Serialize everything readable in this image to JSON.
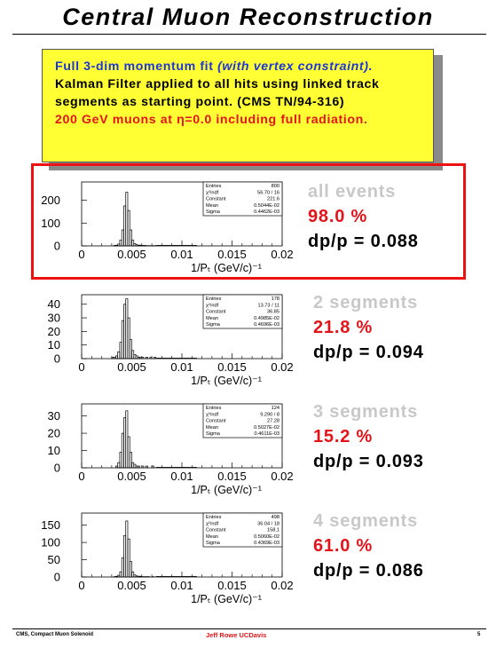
{
  "title": "Central Muon Reconstruction",
  "note": {
    "line1_main": "Full 3-dim momentum fit",
    "line1_italic": "(with vertex constraint).",
    "line2": "Kalman Filter applied to all hits using linked track",
    "line3": "segments as starting point.  (CMS TN/94-316)",
    "line4": "200 GeV muons at η=0.0 including full radiation."
  },
  "colors": {
    "title_blue": "#1d36d6",
    "accent_red": "#e2141a",
    "box_yellow": "#ffff33",
    "segment_grey": "#c8c8c8"
  },
  "panels": [
    {
      "segment_label": "all events",
      "efficiency": "98.0 %",
      "resolution": "dp/p = 0.088",
      "stats": [
        [
          "Entries",
          "800"
        ],
        [
          "χ²/ndf",
          "56.70  /  16"
        ],
        [
          "Constant",
          "221.6"
        ],
        [
          "Mean",
          "0.5044E-02"
        ],
        [
          "Sigma",
          "0.4462E-03"
        ]
      ]
    },
    {
      "segment_label": "2 segments",
      "efficiency": "21.8 %",
      "resolution": "dp/p = 0.094",
      "stats": [
        [
          "Entries",
          "178"
        ],
        [
          "χ²/ndf",
          "13.73  /  11"
        ],
        [
          "Constant",
          "36.85"
        ],
        [
          "Mean",
          "0.4985E-02"
        ],
        [
          "Sigma",
          "0.4696E-03"
        ]
      ]
    },
    {
      "segment_label": "3 segments",
      "efficiency": "15.2 %",
      "resolution": "dp/p = 0.093",
      "stats": [
        [
          "Entries",
          "124"
        ],
        [
          "χ²/ndf",
          "9.290  /  8"
        ],
        [
          "Constant",
          "27.28"
        ],
        [
          "Mean",
          "0.5027E-02"
        ],
        [
          "Sigma",
          "0.4611E-03"
        ]
      ]
    },
    {
      "segment_label": "4 segments",
      "efficiency": "61.0 %",
      "resolution": "dp/p = 0.086",
      "stats": [
        [
          "Entries",
          "498"
        ],
        [
          "χ²/ndf",
          "36.04  /  18"
        ],
        [
          "Constant",
          "158.1"
        ],
        [
          "Mean",
          "0.5060E-02"
        ],
        [
          "Sigma",
          "0.4369E-03"
        ]
      ]
    }
  ],
  "chart_data": [
    {
      "type": "bar",
      "xlabel": "1/Pₜ (GeV/c)⁻¹",
      "xlim": [
        0,
        0.02
      ],
      "ylim": [
        0,
        280
      ],
      "xticks": [
        "0",
        "0.005",
        "0.01",
        "0.015",
        "0.02"
      ],
      "yticks": [
        0,
        100,
        200
      ],
      "bin_start": 0.003,
      "bin_width": 0.0002,
      "values": [
        0,
        2,
        3,
        8,
        25,
        70,
        175,
        235,
        155,
        70,
        25,
        10,
        5,
        3,
        3,
        2,
        2,
        1,
        1,
        1,
        1,
        1
      ]
    },
    {
      "type": "bar",
      "xlabel": "1/Pₜ (GeV/c)⁻¹",
      "xlim": [
        0,
        0.02
      ],
      "ylim": [
        0,
        47
      ],
      "xticks": [
        "0",
        "0.005",
        "0.01",
        "0.015",
        "0.02"
      ],
      "yticks": [
        0,
        10,
        20,
        30,
        40
      ],
      "bin_start": 0.003,
      "bin_width": 0.0002,
      "values": [
        1,
        1,
        2,
        5,
        12,
        28,
        40,
        44,
        30,
        14,
        6,
        3,
        2,
        1,
        1,
        1,
        0,
        1,
        0,
        1,
        0,
        1
      ]
    },
    {
      "type": "bar",
      "xlabel": "1/Pₜ (GeV/c)⁻¹",
      "xlim": [
        0,
        0.02
      ],
      "ylim": [
        0,
        37
      ],
      "xticks": [
        "0",
        "0.005",
        "0.01",
        "0.015",
        "0.02"
      ],
      "yticks": [
        0,
        10,
        20,
        30
      ],
      "bin_start": 0.003,
      "bin_width": 0.0002,
      "values": [
        0,
        0,
        1,
        3,
        9,
        20,
        29,
        33,
        18,
        9,
        3,
        2,
        1,
        1,
        0,
        1,
        0,
        1,
        0,
        0,
        1,
        0
      ]
    },
    {
      "type": "bar",
      "xlabel": "1/Pₜ (GeV/c)⁻¹",
      "xlim": [
        0,
        0.02
      ],
      "ylim": [
        0,
        185
      ],
      "xticks": [
        "0",
        "0.005",
        "0.01",
        "0.015",
        "0.02"
      ],
      "yticks": [
        0,
        50,
        100,
        150
      ],
      "bin_start": 0.003,
      "bin_width": 0.0002,
      "values": [
        0,
        1,
        2,
        5,
        15,
        55,
        120,
        162,
        110,
        45,
        15,
        6,
        3,
        2,
        2,
        1,
        1,
        1,
        1,
        0,
        1,
        0
      ]
    }
  ],
  "footer": {
    "left": "CMS, Compact Muon Solenoid",
    "center": "Jeff Rowe   UCDavis",
    "right": "5"
  }
}
